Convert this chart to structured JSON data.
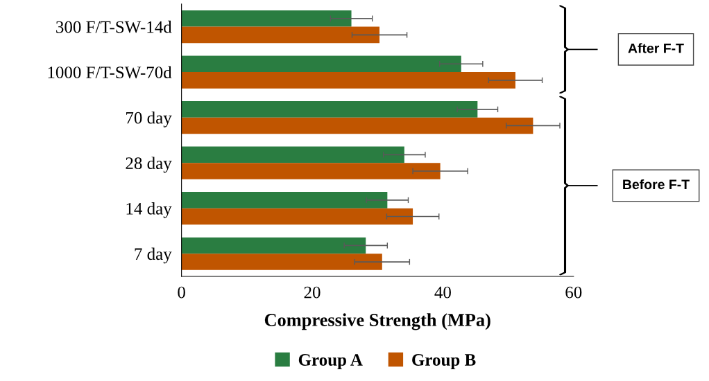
{
  "chart_data": {
    "type": "bar",
    "orientation": "horizontal",
    "xlabel": "Compressive Strength (MPa)",
    "categories": [
      "300 F/T-SW-14d",
      "1000 F/T-SW-70d",
      "70 day",
      "28 day",
      "14 day",
      "7 day"
    ],
    "series": [
      {
        "name": "Group A",
        "color": "#2a7d41",
        "values": [
          26.0,
          42.8,
          45.3,
          34.1,
          31.5,
          28.2
        ],
        "errors": [
          3.2,
          3.3,
          3.1,
          3.2,
          3.2,
          3.3
        ]
      },
      {
        "name": "Group B",
        "color": "#c05500",
        "values": [
          30.3,
          51.1,
          53.8,
          39.6,
          35.4,
          30.7
        ],
        "errors": [
          4.2,
          4.1,
          4.1,
          4.2,
          4.0,
          4.2
        ]
      }
    ],
    "xlim": [
      0,
      60
    ],
    "xticks": [
      0,
      20,
      40,
      60
    ],
    "grid": false,
    "legend": "bottom",
    "annotations": [
      "After F-T",
      "Before F-T"
    ]
  }
}
